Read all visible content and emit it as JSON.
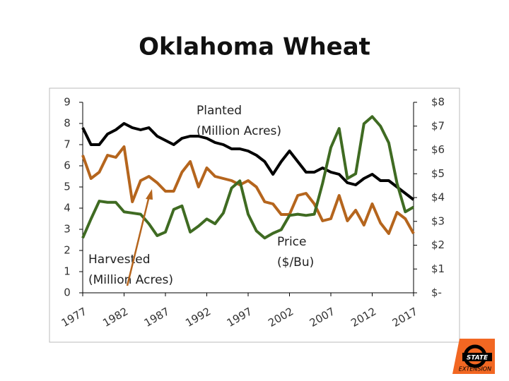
{
  "chart_data": {
    "type": "line",
    "title": "Oklahoma Wheat",
    "x": [
      1977,
      1978,
      1979,
      1980,
      1981,
      1982,
      1983,
      1984,
      1985,
      1986,
      1987,
      1988,
      1989,
      1990,
      1991,
      1992,
      1993,
      1994,
      1995,
      1996,
      1997,
      1998,
      1999,
      2000,
      2001,
      2002,
      2003,
      2004,
      2005,
      2006,
      2007,
      2008,
      2009,
      2010,
      2011,
      2012,
      2013,
      2014,
      2015,
      2016,
      2017
    ],
    "xlim": [
      1977,
      2017
    ],
    "xticks": [
      1977,
      1982,
      1987,
      1992,
      1997,
      2002,
      2007,
      2012,
      2017
    ],
    "ylim": [
      0,
      9
    ],
    "yticks": [
      0,
      1,
      2,
      3,
      4,
      5,
      6,
      7,
      8,
      9
    ],
    "y2lim": [
      0,
      8
    ],
    "y2ticks": [
      {
        "value": 0,
        "label": "$-"
      },
      {
        "value": 1,
        "label": "$1"
      },
      {
        "value": 2,
        "label": "$2"
      },
      {
        "value": 3,
        "label": "$3"
      },
      {
        "value": 4,
        "label": "$4"
      },
      {
        "value": 5,
        "label": "$5"
      },
      {
        "value": 6,
        "label": "$6"
      },
      {
        "value": 7,
        "label": "$7"
      },
      {
        "value": 8,
        "label": "$8"
      }
    ],
    "grid": false,
    "series": [
      {
        "name": "Planted",
        "color": "#000000",
        "values": [
          7.8,
          7.0,
          7.0,
          7.5,
          7.7,
          8.0,
          7.8,
          7.7,
          7.8,
          7.4,
          7.2,
          7.0,
          7.3,
          7.4,
          7.4,
          7.3,
          7.1,
          7.0,
          6.8,
          6.8,
          6.7,
          6.5,
          6.2,
          5.6,
          6.2,
          6.7,
          6.2,
          5.7,
          5.7,
          5.9,
          5.7,
          5.6,
          5.2,
          5.1,
          5.4,
          5.6,
          5.3,
          5.3,
          5.0,
          4.7,
          4.4
        ]
      },
      {
        "name": "Harvested",
        "color": "#b5651d",
        "values": [
          6.5,
          5.4,
          5.7,
          6.5,
          6.4,
          6.9,
          4.3,
          5.3,
          5.5,
          5.2,
          4.8,
          4.8,
          5.7,
          6.2,
          5.0,
          5.9,
          5.5,
          5.4,
          5.3,
          5.1,
          5.3,
          5.0,
          4.3,
          4.2,
          3.7,
          3.7,
          4.6,
          4.7,
          4.2,
          3.4,
          3.5,
          4.6,
          3.4,
          3.9,
          3.2,
          4.2,
          3.3,
          2.8,
          3.8,
          3.5,
          2.8
        ]
      },
      {
        "name": "Price",
        "color": "#3f6b22",
        "axis": "y2",
        "values": [
          2.3,
          3.1,
          3.85,
          3.8,
          3.8,
          3.4,
          3.35,
          3.3,
          2.9,
          2.4,
          2.55,
          3.5,
          3.65,
          2.55,
          2.8,
          3.1,
          2.9,
          3.35,
          4.4,
          4.7,
          3.3,
          2.6,
          2.3,
          2.5,
          2.65,
          3.25,
          3.3,
          3.25,
          3.3,
          4.6,
          6.1,
          6.9,
          4.8,
          5.0,
          7.1,
          7.4,
          7.0,
          6.3,
          4.6,
          3.4,
          3.6
        ]
      }
    ],
    "annotations": [
      {
        "lines": [
          "Planted",
          "(Million Acres)"
        ]
      },
      {
        "lines": [
          "Harvested",
          "(Million Acres)"
        ]
      },
      {
        "lines": [
          "Price",
          "($/Bu)"
        ]
      }
    ],
    "logo": {
      "text": "STATE",
      "subtext": "EXTENSION"
    }
  }
}
